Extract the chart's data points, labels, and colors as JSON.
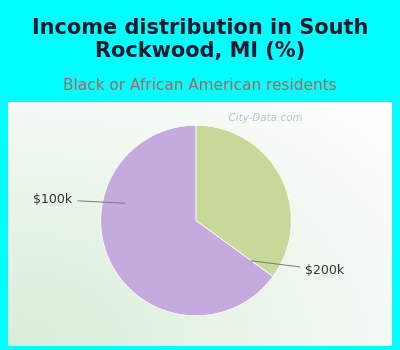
{
  "title": "Income distribution in South\nRockwood, MI (%)",
  "subtitle": "Black or African American residents",
  "title_color": "#1a1a2e",
  "subtitle_color": "#b06060",
  "title_bg_color": "#00FFFF",
  "chart_bg_top": "#e8f4f8",
  "chart_bg_bottom": "#c8e8c8",
  "slices": [
    {
      "label": "$200k",
      "value": 65,
      "color": "#C4AADD"
    },
    {
      "label": "$100k",
      "value": 35,
      "color": "#C8D898"
    }
  ],
  "label_color": "#333333",
  "label_fontsize": 9,
  "title_fontsize": 15,
  "subtitle_fontsize": 11,
  "startangle": 90,
  "watermark": "  City-Data.com"
}
